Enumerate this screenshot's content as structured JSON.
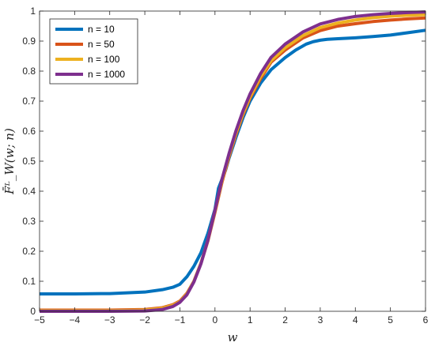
{
  "chart_data": {
    "type": "line",
    "title": "",
    "xlabel": "w",
    "ylabel": "F̄ᴸ_W(w; n)",
    "xlim": [
      -5,
      6
    ],
    "ylim": [
      0,
      1
    ],
    "xticks": [
      -5,
      -4,
      -3,
      -2,
      -1,
      0,
      1,
      2,
      3,
      4,
      5,
      6
    ],
    "yticks": [
      0,
      0.1,
      0.2,
      0.3,
      0.4,
      0.5,
      0.6,
      0.7,
      0.8,
      0.9,
      1
    ],
    "grid": false,
    "legend_position": "top-left",
    "series": [
      {
        "name": "n = 10",
        "color": "#0072BD",
        "x": [
          -5,
          -4,
          -3,
          -2,
          -1.5,
          -1.2,
          -1,
          -0.8,
          -0.6,
          -0.4,
          -0.2,
          -0.1,
          0,
          0.1,
          0.2,
          0.3,
          0.4,
          0.6,
          0.8,
          1,
          1.3,
          1.6,
          2,
          2.3,
          2.6,
          2.8,
          3,
          3.2,
          3.5,
          4,
          4.5,
          5,
          5.5,
          6
        ],
        "y": [
          0.058,
          0.058,
          0.059,
          0.064,
          0.072,
          0.08,
          0.09,
          0.115,
          0.15,
          0.195,
          0.26,
          0.3,
          0.34,
          0.41,
          0.44,
          0.47,
          0.51,
          0.58,
          0.645,
          0.7,
          0.76,
          0.805,
          0.845,
          0.87,
          0.89,
          0.898,
          0.903,
          0.906,
          0.908,
          0.911,
          0.915,
          0.92,
          0.928,
          0.936
        ]
      },
      {
        "name": "n = 50",
        "color": "#D95319",
        "x": [
          -5,
          -3,
          -2,
          -1.5,
          -1.2,
          -1,
          -0.8,
          -0.6,
          -0.4,
          -0.2,
          0,
          0.2,
          0.4,
          0.6,
          0.8,
          1,
          1.3,
          1.6,
          2,
          2.5,
          3,
          3.5,
          4,
          4.5,
          5,
          5.5,
          6
        ],
        "y": [
          0.004,
          0.004,
          0.006,
          0.012,
          0.022,
          0.034,
          0.06,
          0.1,
          0.16,
          0.235,
          0.33,
          0.43,
          0.515,
          0.59,
          0.655,
          0.71,
          0.775,
          0.83,
          0.87,
          0.91,
          0.935,
          0.95,
          0.958,
          0.965,
          0.97,
          0.974,
          0.977
        ]
      },
      {
        "name": "n = 100",
        "color": "#EDB120",
        "x": [
          -5,
          -3,
          -2,
          -1.5,
          -1.2,
          -1,
          -0.8,
          -0.6,
          -0.4,
          -0.2,
          0,
          0.2,
          0.4,
          0.6,
          0.8,
          1,
          1.3,
          1.6,
          2,
          2.5,
          3,
          3.5,
          4,
          4.5,
          5,
          5.5,
          6
        ],
        "y": [
          0.002,
          0.002,
          0.004,
          0.01,
          0.02,
          0.032,
          0.058,
          0.1,
          0.16,
          0.238,
          0.335,
          0.435,
          0.52,
          0.595,
          0.66,
          0.715,
          0.782,
          0.835,
          0.878,
          0.918,
          0.945,
          0.96,
          0.97,
          0.978,
          0.983,
          0.986,
          0.988
        ]
      },
      {
        "name": "n = 1000",
        "color": "#7E2F8E",
        "x": [
          -5,
          -3,
          -2,
          -1.5,
          -1.2,
          -1,
          -0.8,
          -0.6,
          -0.4,
          -0.2,
          0,
          0.2,
          0.4,
          0.6,
          0.8,
          1,
          1.3,
          1.6,
          2,
          2.5,
          3,
          3.5,
          4,
          4.5,
          5,
          5.5,
          6
        ],
        "y": [
          0.0,
          0.0,
          0.001,
          0.006,
          0.016,
          0.03,
          0.055,
          0.098,
          0.158,
          0.238,
          0.337,
          0.44,
          0.525,
          0.602,
          0.668,
          0.724,
          0.792,
          0.846,
          0.89,
          0.93,
          0.957,
          0.972,
          0.982,
          0.988,
          0.992,
          0.995,
          0.997
        ]
      }
    ]
  }
}
